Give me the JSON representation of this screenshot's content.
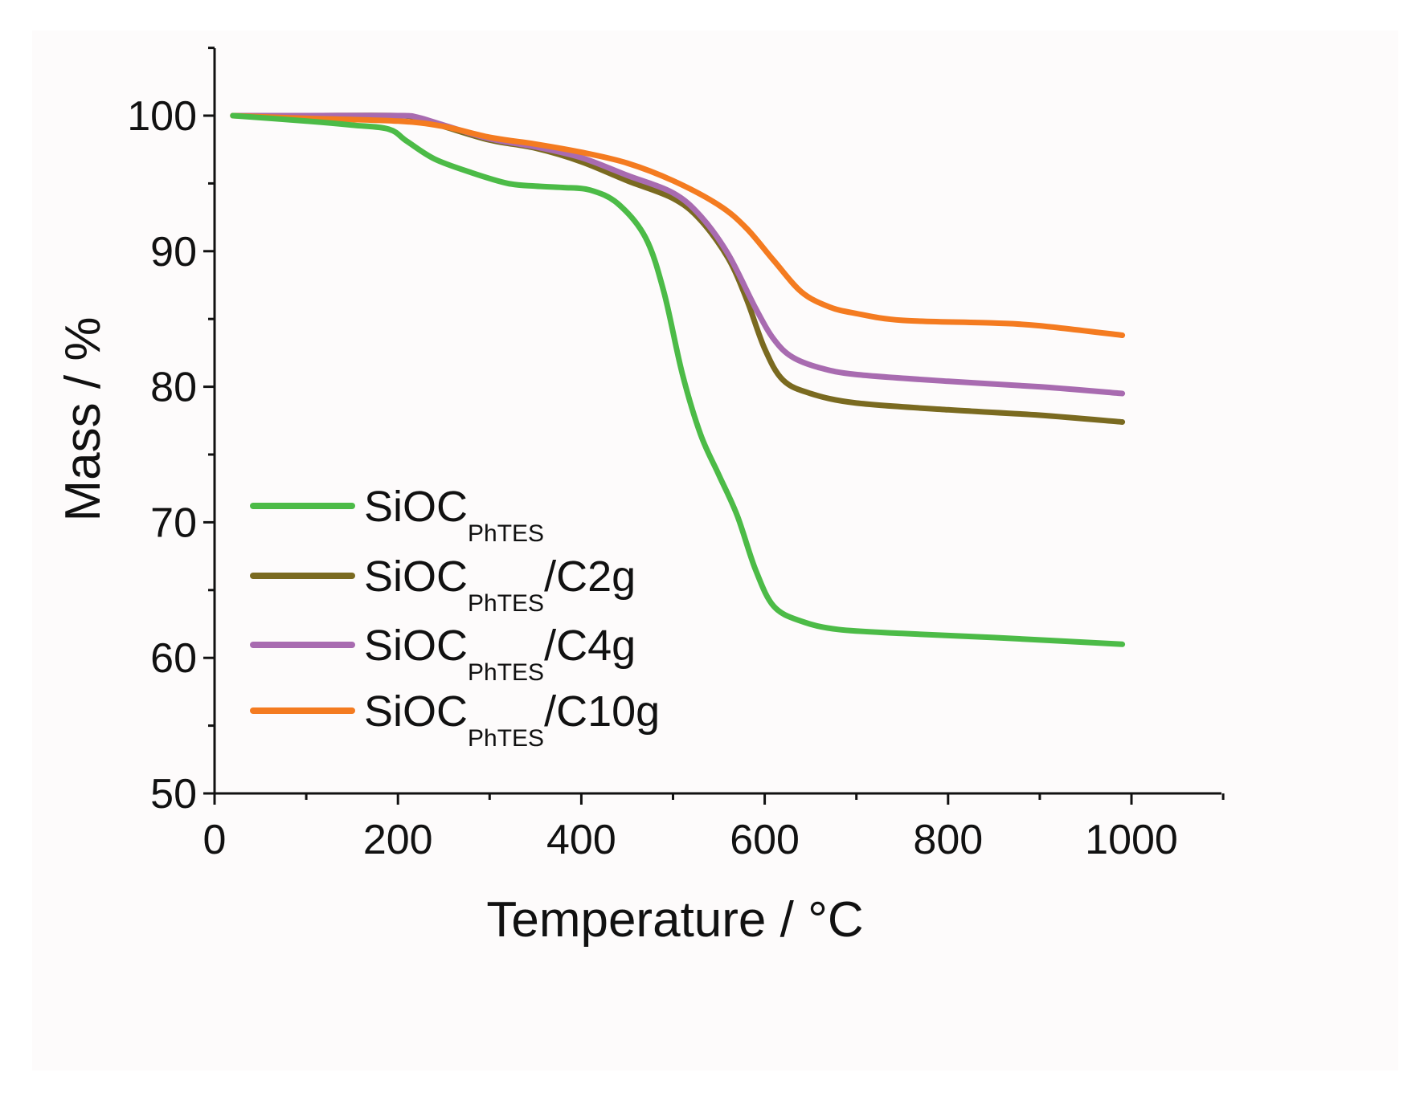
{
  "chart_data": {
    "type": "line",
    "title": "",
    "xlabel": "Temperature / °C",
    "ylabel": "Mass / %",
    "xlim": [
      0,
      1100
    ],
    "ylim": [
      50,
      105
    ],
    "xticks": [
      0,
      200,
      400,
      600,
      800,
      1000
    ],
    "xtick_labels": [
      "0",
      "200",
      "400",
      "600",
      "800",
      "1000"
    ],
    "yticks": [
      50,
      60,
      70,
      80,
      90,
      100
    ],
    "ytick_labels": [
      "50",
      "60",
      "70",
      "80",
      "90",
      "100"
    ],
    "grid": false,
    "legend_position": "bottom-left",
    "series": [
      {
        "name": "SiOC_PhTES",
        "label_main": "SiOC",
        "label_sub": "PhTES",
        "label_suffix": "",
        "color": "#4cbb47",
        "x": [
          20,
          100,
          150,
          190,
          210,
          240,
          280,
          320,
          350,
          380,
          410,
          440,
          470,
          490,
          510,
          530,
          550,
          570,
          590,
          610,
          640,
          680,
          750,
          850,
          990
        ],
        "y": [
          100,
          99.6,
          99.3,
          99.0,
          98.1,
          96.8,
          95.8,
          95.0,
          94.8,
          94.7,
          94.5,
          93.5,
          91.0,
          87.0,
          81.0,
          76.5,
          73.5,
          70.5,
          66.5,
          63.8,
          62.7,
          62.1,
          61.8,
          61.5,
          61.0
        ]
      },
      {
        "name": "SiOC_PhTES/C2g",
        "label_main": "SiOC",
        "label_sub": "PhTES",
        "label_suffix": "/C2g",
        "color": "#7a6a20",
        "x": [
          20,
          100,
          200,
          220,
          250,
          300,
          350,
          400,
          450,
          500,
          530,
          560,
          580,
          600,
          620,
          650,
          700,
          800,
          900,
          990
        ],
        "y": [
          100,
          100,
          100,
          99.8,
          99.2,
          98.2,
          97.6,
          96.6,
          95.2,
          93.9,
          92.3,
          89.5,
          86.5,
          82.8,
          80.5,
          79.5,
          78.8,
          78.3,
          77.9,
          77.4
        ]
      },
      {
        "name": "SiOC_PhTES/C4g",
        "label_main": "SiOC",
        "label_sub": "PhTES",
        "label_suffix": "/C4g",
        "color": "#a86bb0",
        "x": [
          20,
          100,
          200,
          220,
          250,
          300,
          350,
          400,
          450,
          500,
          530,
          560,
          590,
          610,
          630,
          660,
          700,
          800,
          900,
          990
        ],
        "y": [
          100,
          100,
          100,
          99.9,
          99.3,
          98.3,
          97.7,
          96.9,
          95.6,
          94.3,
          92.6,
          89.8,
          85.8,
          83.5,
          82.2,
          81.4,
          80.9,
          80.4,
          80.0,
          79.5
        ]
      },
      {
        "name": "SiOC_PhTES/C10g",
        "label_main": "SiOC",
        "label_sub": "PhTES",
        "label_suffix": "/C10g",
        "color": "#f47b20",
        "x": [
          20,
          100,
          200,
          250,
          300,
          350,
          400,
          450,
          500,
          550,
          580,
          610,
          640,
          670,
          700,
          750,
          850,
          900,
          990
        ],
        "y": [
          100,
          99.8,
          99.6,
          99.2,
          98.4,
          97.9,
          97.3,
          96.5,
          95.2,
          93.4,
          91.7,
          89.3,
          87.0,
          85.9,
          85.4,
          84.9,
          84.7,
          84.5,
          83.8
        ]
      }
    ]
  }
}
